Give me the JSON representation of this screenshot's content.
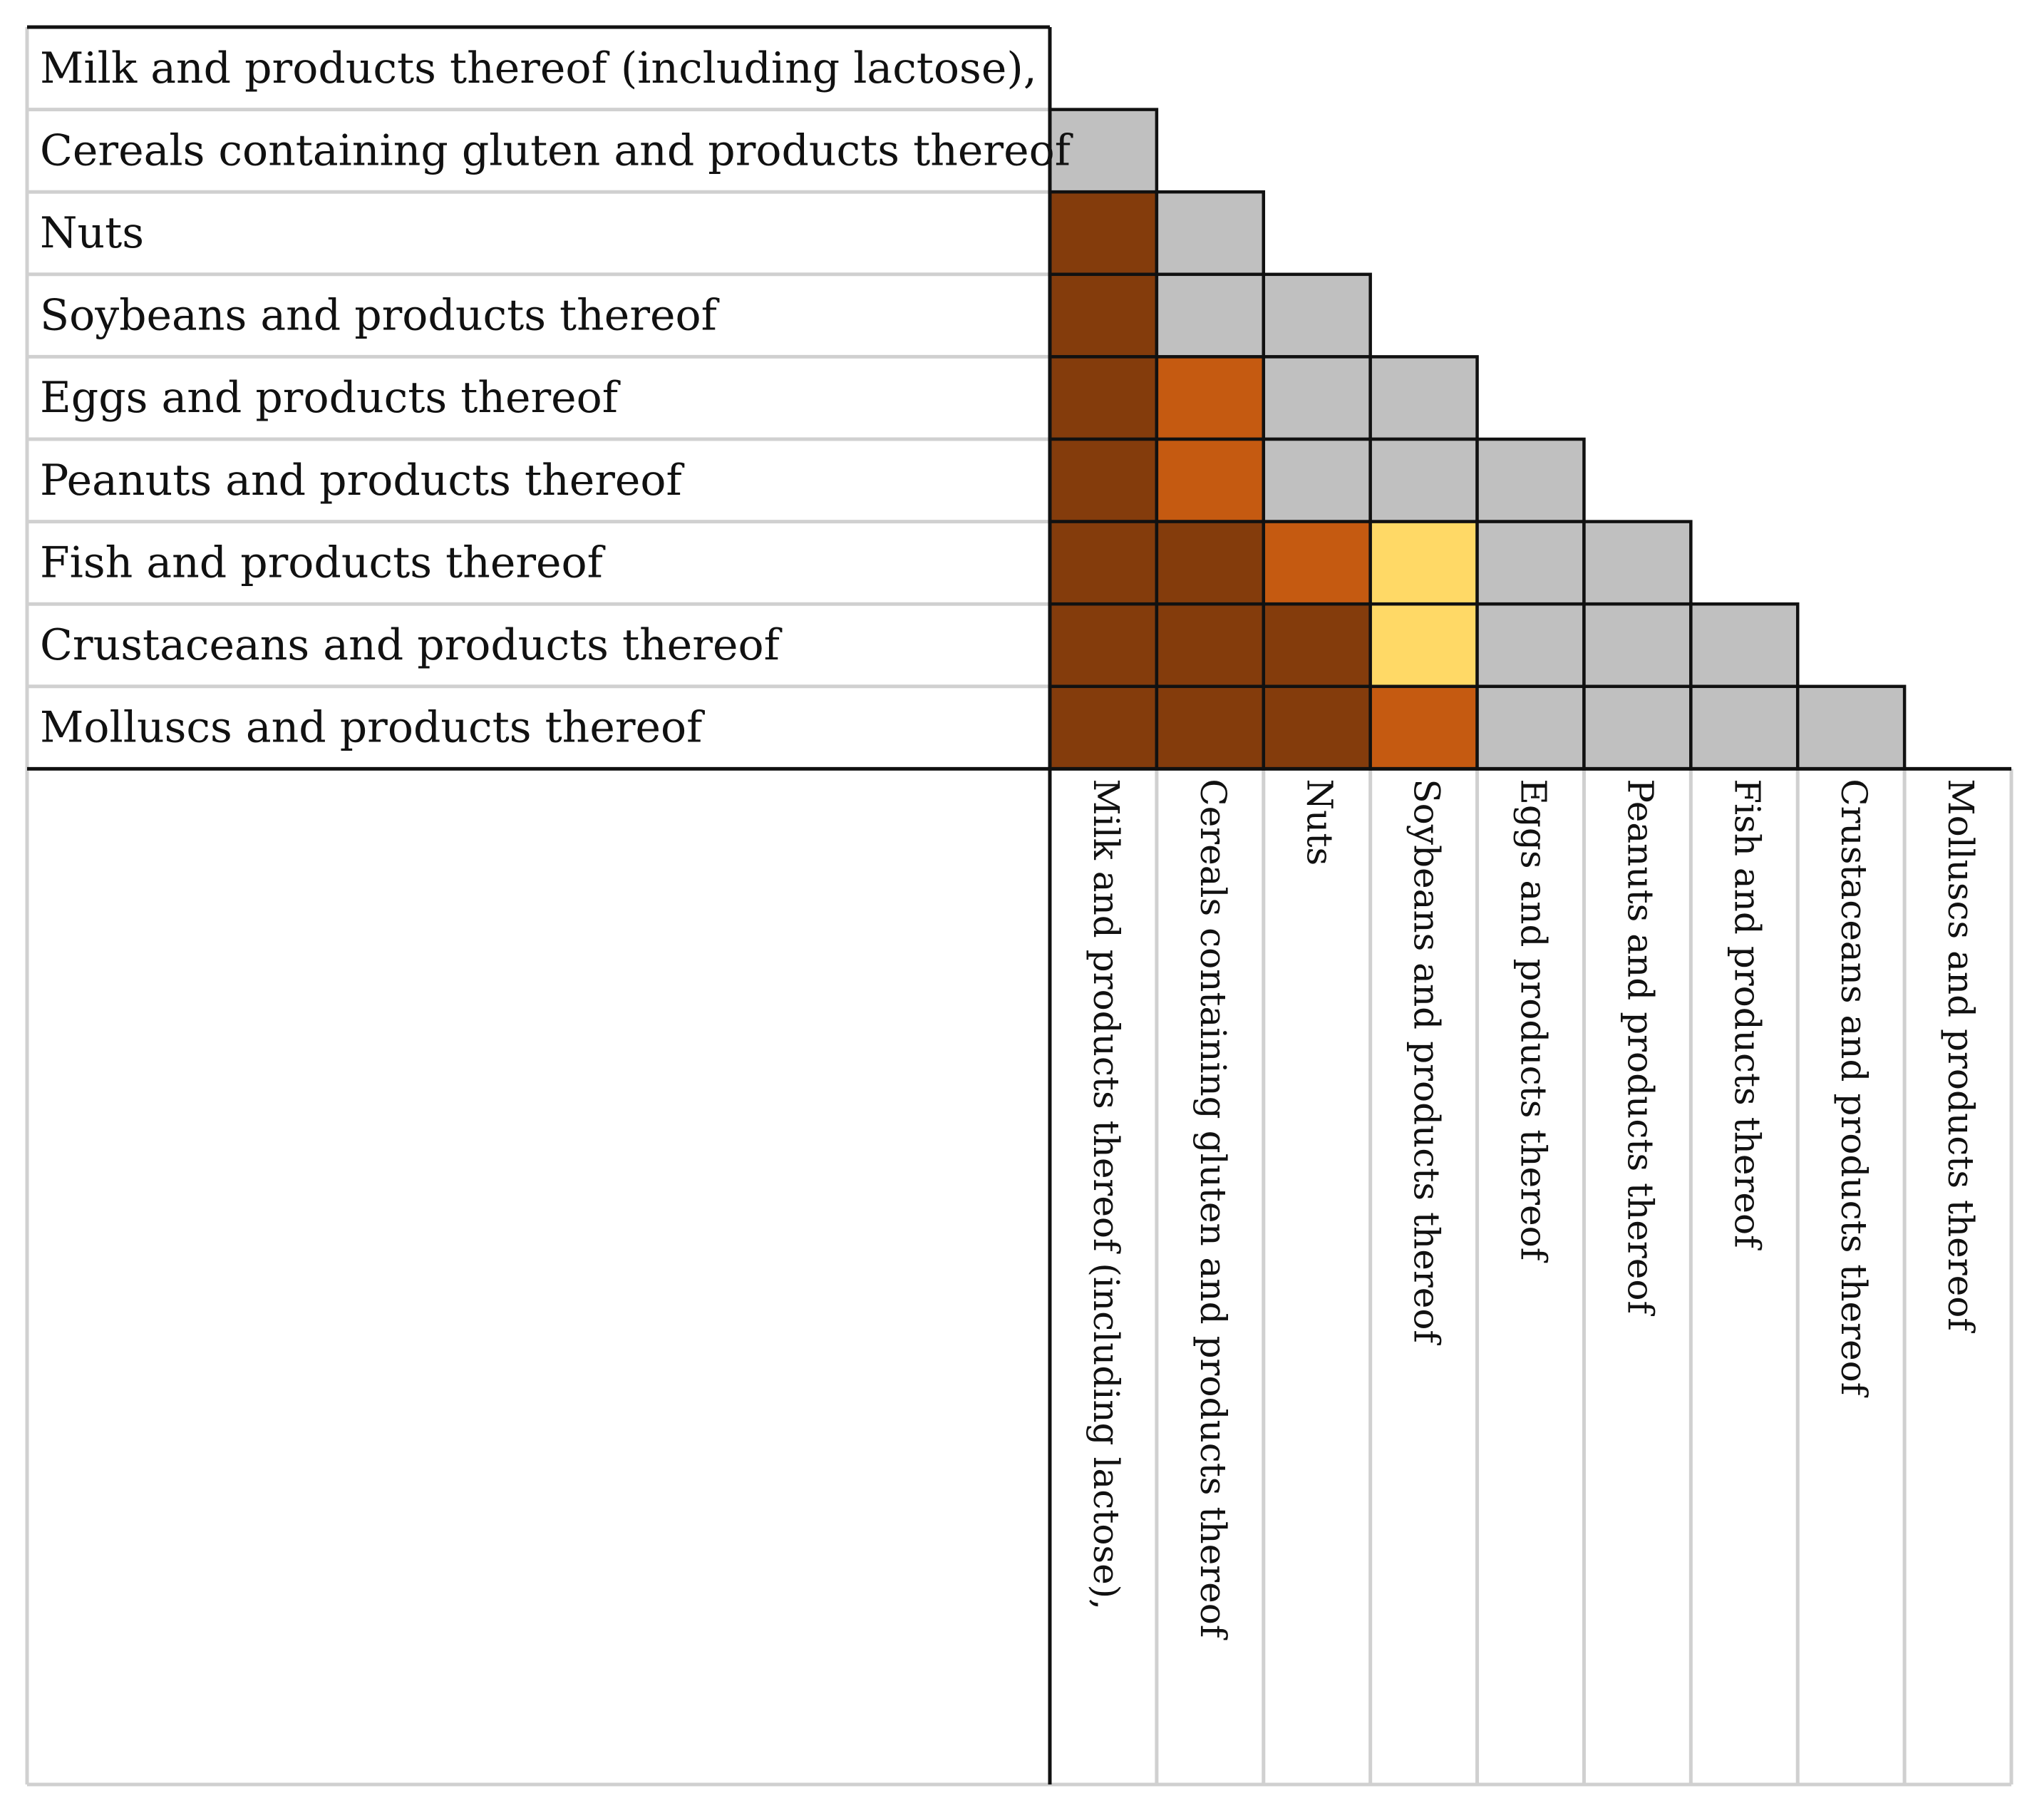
{
  "chart_data": {
    "type": "heatmap",
    "layout": "lower-triangular",
    "row_labels": [
      "Milk and products thereof (including lactose),",
      "Cereals containing gluten and products thereof",
      "Nuts",
      "Soybeans and products thereof",
      "Eggs and products thereof",
      "Peanuts and products thereof",
      "Fish and products thereof",
      "Crustaceans and products thereof",
      "Molluscs and products thereof"
    ],
    "column_labels": [
      "Milk and products thereof (including lactose),",
      "Cereals containing gluten and products thereof",
      "Nuts",
      "Soybeans and products thereof",
      "Eggs and products thereof",
      "Peanuts and products thereof",
      "Fish and products thereof",
      "Crustaceans and products thereof",
      "Molluscs and products thereof"
    ],
    "levels": {
      "0": "#c0c0c0",
      "1": "#ffd966",
      "2": "#c55a11",
      "3": "#843c0c"
    },
    "matrix": [
      [],
      [
        0
      ],
      [
        3,
        0
      ],
      [
        3,
        0,
        0
      ],
      [
        3,
        2,
        0,
        0
      ],
      [
        3,
        2,
        0,
        0,
        0
      ],
      [
        3,
        3,
        2,
        1,
        0,
        0
      ],
      [
        3,
        3,
        3,
        1,
        0,
        0,
        0
      ],
      [
        3,
        3,
        3,
        2,
        0,
        0,
        0,
        0
      ]
    ]
  }
}
